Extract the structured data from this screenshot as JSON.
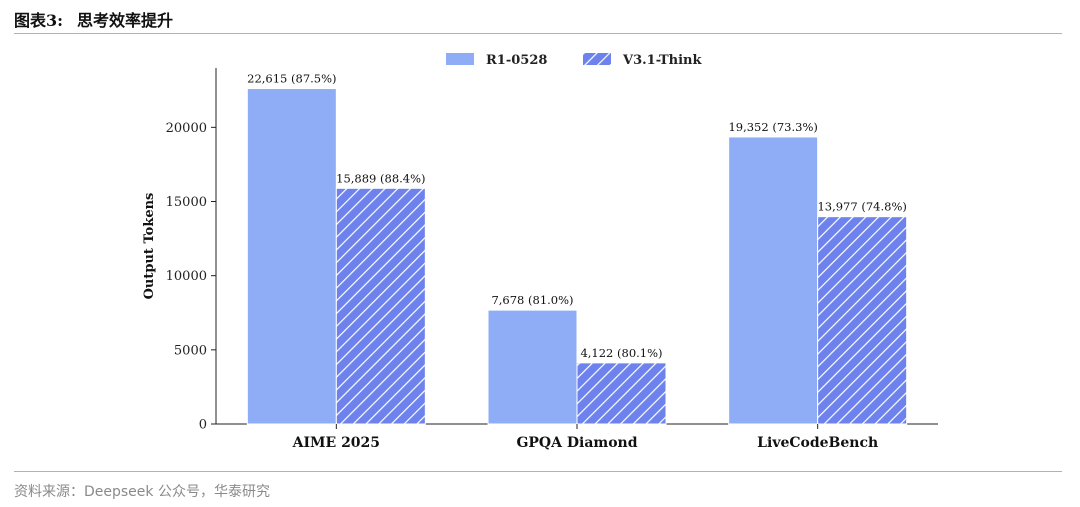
{
  "header": {
    "label": "图表3:",
    "title": "思考效率提升"
  },
  "source": "资料来源：Deepseek 公众号，华泰研究",
  "chart_data": {
    "type": "bar",
    "categories": [
      "AIME 2025",
      "GPQA Diamond",
      "LiveCodeBench"
    ],
    "series": [
      {
        "name": "R1-0528",
        "values": [
          22615,
          7678,
          19352
        ],
        "labels": [
          "22,615 (87.5%)",
          "7,678 (81.0%)",
          "19,352 (73.3%)"
        ],
        "color": "#8fadf7",
        "pattern": "solid"
      },
      {
        "name": "V3.1-Think",
        "values": [
          15889,
          4122,
          13977
        ],
        "labels": [
          "15,889 (88.4%)",
          "4,122 (80.1%)",
          "13,977 (74.8%)"
        ],
        "color": "#5c74e6",
        "pattern": "hatched"
      }
    ],
    "ylabel": "Output Tokens",
    "xlabel": "",
    "ylim": [
      0,
      24000
    ],
    "yticks": [
      0,
      5000,
      10000,
      15000,
      20000
    ],
    "grid": false,
    "legend_position": "top-center"
  }
}
